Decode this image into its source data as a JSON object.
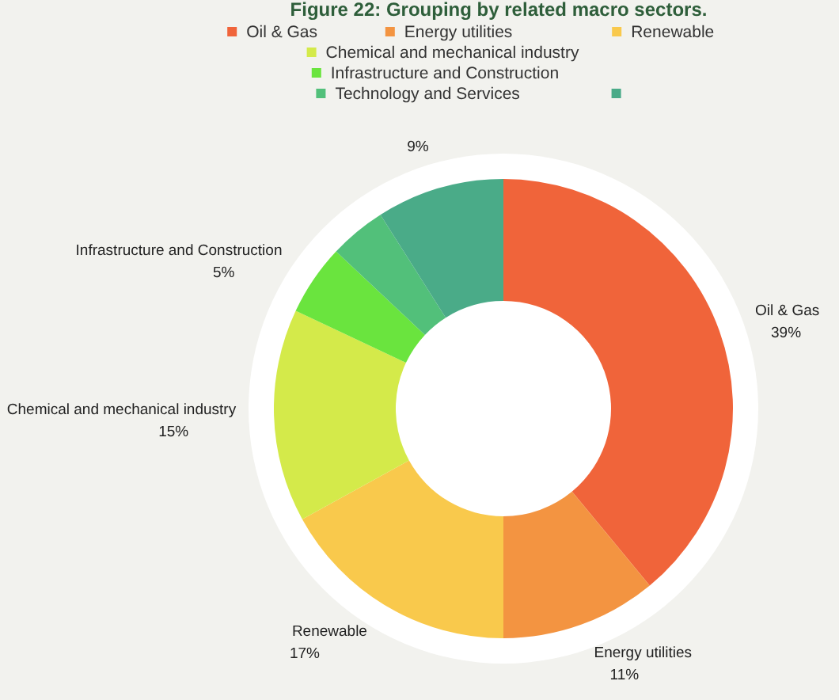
{
  "chart_data": {
    "type": "donut",
    "title": "Figure 22: Grouping by related macro sectors.",
    "categories": [
      "Oil & Gas",
      "Energy utilities",
      "Renewable",
      "Chemical and mechanical industry",
      "Infrastructure and Construction",
      "Technology and Services",
      null
    ],
    "values": [
      39,
      11,
      17,
      15,
      5,
      4,
      9
    ],
    "colors": [
      "#f0643a",
      "#f39441",
      "#f9c94c",
      "#d4ea4a",
      "#6ae43e",
      "#52c07a",
      "#4aab88"
    ],
    "value_labels": [
      "39%",
      "11%",
      "17%",
      "15%",
      "5%",
      null,
      "9%"
    ],
    "legend": "top"
  }
}
